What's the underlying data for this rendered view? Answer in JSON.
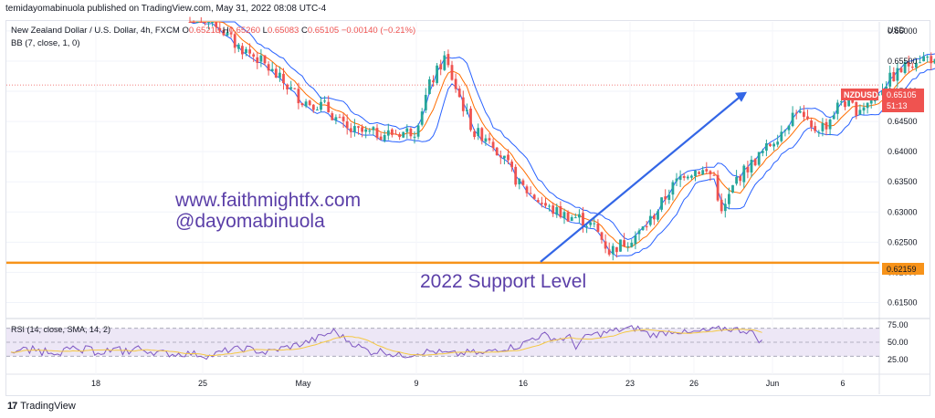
{
  "header": {
    "publish_line": "temidayomabinuola published on TradingView.com, May 31, 2022 08:08 UTC-4"
  },
  "legend": {
    "symbol_title": "New Zealand Dollar / U.S. Dollar, 4h, FXCM",
    "open_label": "O",
    "open_value": "0.65213",
    "high_label": "H",
    "high_value": "0.65260",
    "low_label": "L",
    "low_value": "0.65083",
    "close_label": "C",
    "close_value": "0.65105",
    "change": "−0.00140 (−0.21%)",
    "indicator": "BB (7, close, 1, 0)"
  },
  "watermark": {
    "line1": "www.faithmightfx.com",
    "line2": "@dayomabinuola"
  },
  "annotation": {
    "support_label": "2022 Support Level"
  },
  "price_axis": {
    "currency": "USD",
    "symbol_tag": "NZDUSD",
    "last_price": "0.65105",
    "countdown": "51:13",
    "support_price": "0.62159"
  },
  "rsi": {
    "label": "RSI (14, close, SMA, 14, 2)"
  },
  "footer": {
    "brand": "TradingView"
  },
  "colors": {
    "up": "#26a69a",
    "down": "#ef5350",
    "bb_band": "#2962ff",
    "bb_mid": "#ff6d00",
    "support": "#f7931a",
    "arrow": "#3366e6",
    "watermark": "#5b3fa8",
    "rsi_line": "#7e57c2",
    "rsi_ma": "#f5c842",
    "rsi_fill": "#ede7f6"
  },
  "chart_data": [
    {
      "type": "candlestick",
      "title": "New Zealand Dollar / U.S. Dollar, 4h, FXCM",
      "x": [
        "Apr 18",
        "Apr 25",
        "May",
        "May 9",
        "May 16",
        "May 23",
        "May 26",
        "Jun",
        "Jun 6"
      ],
      "y_ticks": [
        0.615,
        0.62,
        0.625,
        0.63,
        0.635,
        0.64,
        0.645,
        0.65,
        0.655,
        0.66
      ],
      "ylim": [
        0.6125,
        0.6615
      ],
      "support_level": 0.62159,
      "last_close": 0.65105,
      "price_path": [
        [
          0,
          0.6625
        ],
        [
          6,
          0.662
        ],
        [
          12,
          0.6578
        ],
        [
          18,
          0.6555
        ],
        [
          24,
          0.652
        ],
        [
          30,
          0.6485
        ],
        [
          36,
          0.6475
        ],
        [
          42,
          0.6435
        ],
        [
          48,
          0.643
        ],
        [
          54,
          0.643
        ],
        [
          60,
          0.6435
        ],
        [
          64,
          0.651
        ],
        [
          68,
          0.6555
        ],
        [
          72,
          0.649
        ],
        [
          76,
          0.643
        ],
        [
          80,
          0.6425
        ],
        [
          84,
          0.6385
        ],
        [
          88,
          0.6345
        ],
        [
          92,
          0.6325
        ],
        [
          96,
          0.6305
        ],
        [
          100,
          0.6295
        ],
        [
          104,
          0.629
        ],
        [
          108,
          0.6275
        ],
        [
          112,
          0.6235
        ],
        [
          116,
          0.625
        ],
        [
          120,
          0.6265
        ],
        [
          124,
          0.6295
        ],
        [
          128,
          0.6335
        ],
        [
          132,
          0.6365
        ],
        [
          136,
          0.637
        ],
        [
          140,
          0.636
        ],
        [
          142,
          0.6295
        ],
        [
          146,
          0.6355
        ],
        [
          150,
          0.638
        ],
        [
          154,
          0.6405
        ],
        [
          158,
          0.6435
        ],
        [
          162,
          0.647
        ],
        [
          166,
          0.6435
        ],
        [
          170,
          0.6445
        ],
        [
          174,
          0.6485
        ],
        [
          178,
          0.647
        ],
        [
          182,
          0.6485
        ],
        [
          186,
          0.6515
        ],
        [
          190,
          0.6535
        ],
        [
          194,
          0.6555
        ],
        [
          198,
          0.6555
        ],
        [
          200,
          0.6535
        ],
        [
          202,
          0.6515
        ]
      ],
      "bb": {
        "length": 7,
        "source": "close",
        "mult": 1,
        "offset": 0
      }
    },
    {
      "type": "line",
      "title": "RSI (14, close, SMA, 14, 2)",
      "y_ticks": [
        25,
        50,
        75
      ],
      "ylim": [
        20,
        80
      ],
      "bands": [
        30,
        70
      ],
      "rsi_path": [
        [
          0,
          42
        ],
        [
          6,
          36
        ],
        [
          12,
          33
        ],
        [
          18,
          34
        ],
        [
          24,
          30
        ],
        [
          30,
          39
        ],
        [
          36,
          41
        ],
        [
          42,
          35
        ],
        [
          48,
          42
        ],
        [
          54,
          48
        ],
        [
          60,
          58
        ],
        [
          64,
          66
        ],
        [
          68,
          54
        ],
        [
          72,
          44
        ],
        [
          76,
          36
        ],
        [
          80,
          38
        ],
        [
          84,
          31
        ],
        [
          88,
          32
        ],
        [
          92,
          36
        ],
        [
          96,
          37
        ],
        [
          100,
          34
        ],
        [
          104,
          33
        ],
        [
          108,
          36
        ],
        [
          112,
          33
        ],
        [
          116,
          40
        ],
        [
          120,
          42
        ],
        [
          124,
          45
        ],
        [
          128,
          56
        ],
        [
          132,
          60
        ],
        [
          136,
          54
        ],
        [
          140,
          57
        ],
        [
          142,
          44
        ],
        [
          146,
          60
        ],
        [
          150,
          62
        ],
        [
          154,
          66
        ],
        [
          158,
          69
        ],
        [
          162,
          70
        ],
        [
          166,
          60
        ],
        [
          170,
          63
        ],
        [
          174,
          67
        ],
        [
          178,
          62
        ],
        [
          182,
          65
        ],
        [
          186,
          67
        ],
        [
          190,
          70
        ],
        [
          194,
          68
        ],
        [
          198,
          66
        ],
        [
          200,
          58
        ],
        [
          202,
          50
        ]
      ]
    }
  ]
}
